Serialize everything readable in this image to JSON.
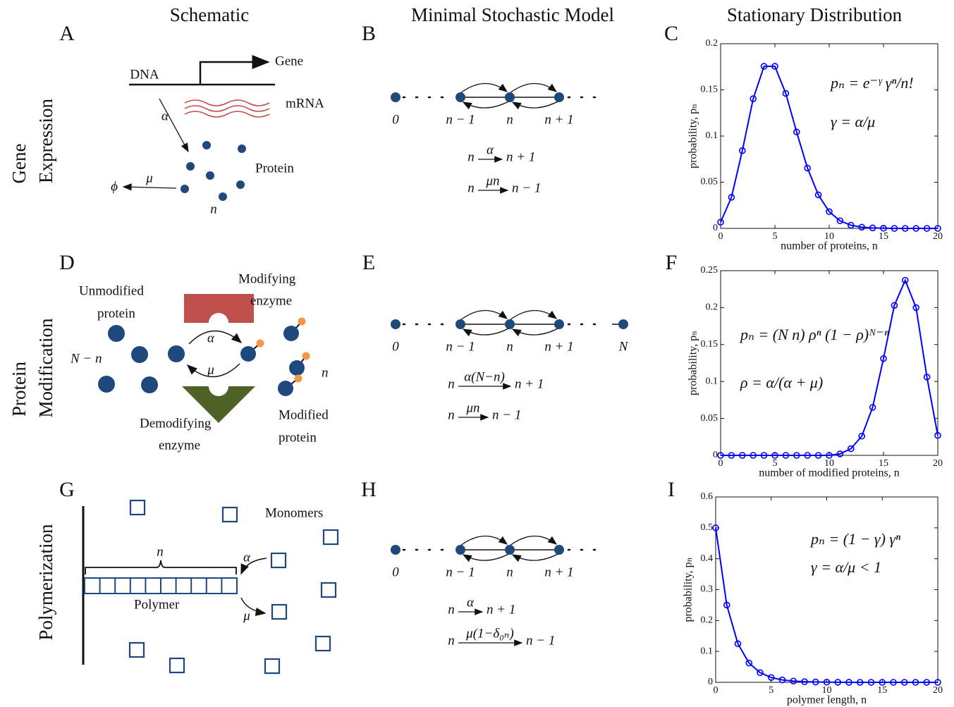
{
  "headers": [
    "Schematic",
    "Minimal Stochastic Model",
    "Stationary Distribution"
  ],
  "panel_letters": [
    "A",
    "B",
    "C",
    "D",
    "E",
    "F",
    "G",
    "H",
    "I"
  ],
  "rows": [
    [
      "Gene",
      "Expression"
    ],
    [
      "Protein",
      "Modification"
    ],
    [
      "Polymerization"
    ]
  ],
  "schematic_a": {
    "dna": "DNA",
    "gene": "Gene",
    "mrna": "mRNA",
    "rate_in": "α",
    "protein": "Protein",
    "rate_out": "μ",
    "sink": "ϕ",
    "count": "n"
  },
  "schematic_d": {
    "unmodified": [
      "Unmodified",
      "protein"
    ],
    "modifying": [
      "Modifying",
      "enzyme"
    ],
    "count_unmod": "N − n",
    "rate_fwd": "α",
    "rate_back": "μ",
    "demodifying": [
      "Demodifying",
      "enzyme"
    ],
    "modified": [
      "Modified",
      "protein"
    ],
    "count_mod": "n"
  },
  "schematic_g": {
    "monomers": "Monomers",
    "count": "n",
    "rate_on": "α",
    "rate_off": "μ",
    "polymer": "Polymer"
  },
  "models": [
    {
      "states": [
        "0",
        "n − 1",
        "n",
        "n + 1"
      ],
      "reactions": [
        {
          "from": "n",
          "rate": "α",
          "to": "n + 1"
        },
        {
          "from": "n",
          "rate": "μn",
          "to": "n − 1"
        }
      ]
    },
    {
      "states": [
        "0",
        "n − 1",
        "n",
        "n + 1",
        "N"
      ],
      "reactions": [
        {
          "from": "n",
          "rate": "α(N−n)",
          "to": "n + 1"
        },
        {
          "from": "n",
          "rate": "μn",
          "to": "n − 1"
        }
      ]
    },
    {
      "states": [
        "0",
        "n − 1",
        "n",
        "n + 1"
      ],
      "reactions": [
        {
          "from": "n",
          "rate": "α",
          "to": "n + 1"
        },
        {
          "from": "n",
          "rate": "μ(1−δ₀ₙ)",
          "to": "n − 1"
        }
      ]
    }
  ],
  "chart_data": [
    {
      "type": "line",
      "xlabel": "number of proteins, n",
      "ylabel": "probability, pₙ",
      "x": [
        0,
        1,
        2,
        3,
        4,
        5,
        6,
        7,
        8,
        9,
        10,
        11,
        12,
        13,
        14,
        15,
        16,
        17,
        18,
        19,
        20
      ],
      "values": [
        0.0067,
        0.0337,
        0.0842,
        0.1404,
        0.1755,
        0.1755,
        0.1462,
        0.1044,
        0.0653,
        0.0363,
        0.0181,
        0.0082,
        0.0034,
        0.0013,
        0.0005,
        0.0002,
        0,
        0,
        0,
        0,
        0
      ],
      "color": "#0000ff",
      "xlim": [
        0,
        20
      ],
      "ylim": [
        0,
        0.2
      ],
      "xticks": [
        0,
        5,
        10,
        15,
        20
      ],
      "yticks": [
        0,
        0.05,
        0.1,
        0.15,
        0.2
      ],
      "annotations": [
        "pₙ = e⁻ᵞ γⁿ/n!",
        "γ = α/μ"
      ]
    },
    {
      "type": "line",
      "xlabel": "number of modified proteins, n",
      "ylabel": "probability, pₙ",
      "x": [
        0,
        1,
        2,
        3,
        4,
        5,
        6,
        7,
        8,
        9,
        10,
        11,
        12,
        13,
        14,
        15,
        16,
        17,
        18,
        19,
        20
      ],
      "values": [
        0,
        0,
        0,
        0,
        0,
        0,
        0,
        0,
        0,
        0,
        0,
        0.002,
        0.009,
        0.026,
        0.065,
        0.131,
        0.203,
        0.237,
        0.2,
        0.106,
        0.027
      ],
      "color": "#0000ff",
      "xlim": [
        0,
        20
      ],
      "ylim": [
        0,
        0.25
      ],
      "xticks": [
        0,
        5,
        10,
        15,
        20
      ],
      "yticks": [
        0,
        0.05,
        0.1,
        0.15,
        0.2,
        0.25
      ],
      "annotations": [
        "pₙ = (N n) ρⁿ (1 − ρ)ᴺ⁻ⁿ",
        "ρ = α/(α + μ)"
      ]
    },
    {
      "type": "line",
      "xlabel": "polymer length, n",
      "ylabel": "probability, pₙ",
      "x": [
        0,
        1,
        2,
        3,
        4,
        5,
        6,
        7,
        8,
        9,
        10,
        11,
        12,
        13,
        14,
        15,
        16,
        17,
        18,
        19,
        20
      ],
      "values": [
        0.5,
        0.25,
        0.125,
        0.0625,
        0.0313,
        0.0156,
        0.0078,
        0.0039,
        0.002,
        0.001,
        0.0005,
        0.0002,
        0.0001,
        0,
        0,
        0,
        0,
        0,
        0,
        0,
        0
      ],
      "color": "#0000ff",
      "xlim": [
        0,
        20
      ],
      "ylim": [
        0,
        0.6
      ],
      "xticks": [
        0,
        5,
        10,
        15,
        20
      ],
      "yticks": [
        0,
        0.1,
        0.2,
        0.3,
        0.4,
        0.5,
        0.6
      ],
      "annotations": [
        "pₙ = (1 − γ) γⁿ",
        "γ = α/μ < 1"
      ]
    }
  ]
}
